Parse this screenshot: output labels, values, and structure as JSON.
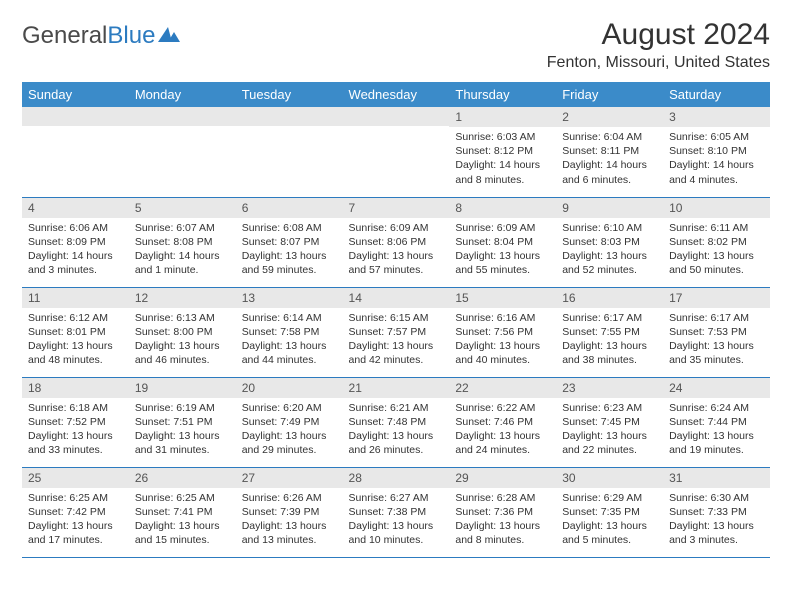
{
  "logo": {
    "part1": "General",
    "part2": "Blue"
  },
  "title": "August 2024",
  "location": "Fenton, Missouri, United States",
  "colors": {
    "header_bg": "#3b8bc9",
    "header_text": "#ffffff",
    "daynum_bg": "#e8e8e8",
    "border": "#2c7bc0",
    "text": "#333333"
  },
  "weekdays": [
    "Sunday",
    "Monday",
    "Tuesday",
    "Wednesday",
    "Thursday",
    "Friday",
    "Saturday"
  ],
  "weeks": [
    [
      {
        "empty": true
      },
      {
        "empty": true
      },
      {
        "empty": true
      },
      {
        "empty": true
      },
      {
        "num": "1",
        "sunrise": "Sunrise: 6:03 AM",
        "sunset": "Sunset: 8:12 PM",
        "daylight1": "Daylight: 14 hours",
        "daylight2": "and 8 minutes."
      },
      {
        "num": "2",
        "sunrise": "Sunrise: 6:04 AM",
        "sunset": "Sunset: 8:11 PM",
        "daylight1": "Daylight: 14 hours",
        "daylight2": "and 6 minutes."
      },
      {
        "num": "3",
        "sunrise": "Sunrise: 6:05 AM",
        "sunset": "Sunset: 8:10 PM",
        "daylight1": "Daylight: 14 hours",
        "daylight2": "and 4 minutes."
      }
    ],
    [
      {
        "num": "4",
        "sunrise": "Sunrise: 6:06 AM",
        "sunset": "Sunset: 8:09 PM",
        "daylight1": "Daylight: 14 hours",
        "daylight2": "and 3 minutes."
      },
      {
        "num": "5",
        "sunrise": "Sunrise: 6:07 AM",
        "sunset": "Sunset: 8:08 PM",
        "daylight1": "Daylight: 14 hours",
        "daylight2": "and 1 minute."
      },
      {
        "num": "6",
        "sunrise": "Sunrise: 6:08 AM",
        "sunset": "Sunset: 8:07 PM",
        "daylight1": "Daylight: 13 hours",
        "daylight2": "and 59 minutes."
      },
      {
        "num": "7",
        "sunrise": "Sunrise: 6:09 AM",
        "sunset": "Sunset: 8:06 PM",
        "daylight1": "Daylight: 13 hours",
        "daylight2": "and 57 minutes."
      },
      {
        "num": "8",
        "sunrise": "Sunrise: 6:09 AM",
        "sunset": "Sunset: 8:04 PM",
        "daylight1": "Daylight: 13 hours",
        "daylight2": "and 55 minutes."
      },
      {
        "num": "9",
        "sunrise": "Sunrise: 6:10 AM",
        "sunset": "Sunset: 8:03 PM",
        "daylight1": "Daylight: 13 hours",
        "daylight2": "and 52 minutes."
      },
      {
        "num": "10",
        "sunrise": "Sunrise: 6:11 AM",
        "sunset": "Sunset: 8:02 PM",
        "daylight1": "Daylight: 13 hours",
        "daylight2": "and 50 minutes."
      }
    ],
    [
      {
        "num": "11",
        "sunrise": "Sunrise: 6:12 AM",
        "sunset": "Sunset: 8:01 PM",
        "daylight1": "Daylight: 13 hours",
        "daylight2": "and 48 minutes."
      },
      {
        "num": "12",
        "sunrise": "Sunrise: 6:13 AM",
        "sunset": "Sunset: 8:00 PM",
        "daylight1": "Daylight: 13 hours",
        "daylight2": "and 46 minutes."
      },
      {
        "num": "13",
        "sunrise": "Sunrise: 6:14 AM",
        "sunset": "Sunset: 7:58 PM",
        "daylight1": "Daylight: 13 hours",
        "daylight2": "and 44 minutes."
      },
      {
        "num": "14",
        "sunrise": "Sunrise: 6:15 AM",
        "sunset": "Sunset: 7:57 PM",
        "daylight1": "Daylight: 13 hours",
        "daylight2": "and 42 minutes."
      },
      {
        "num": "15",
        "sunrise": "Sunrise: 6:16 AM",
        "sunset": "Sunset: 7:56 PM",
        "daylight1": "Daylight: 13 hours",
        "daylight2": "and 40 minutes."
      },
      {
        "num": "16",
        "sunrise": "Sunrise: 6:17 AM",
        "sunset": "Sunset: 7:55 PM",
        "daylight1": "Daylight: 13 hours",
        "daylight2": "and 38 minutes."
      },
      {
        "num": "17",
        "sunrise": "Sunrise: 6:17 AM",
        "sunset": "Sunset: 7:53 PM",
        "daylight1": "Daylight: 13 hours",
        "daylight2": "and 35 minutes."
      }
    ],
    [
      {
        "num": "18",
        "sunrise": "Sunrise: 6:18 AM",
        "sunset": "Sunset: 7:52 PM",
        "daylight1": "Daylight: 13 hours",
        "daylight2": "and 33 minutes."
      },
      {
        "num": "19",
        "sunrise": "Sunrise: 6:19 AM",
        "sunset": "Sunset: 7:51 PM",
        "daylight1": "Daylight: 13 hours",
        "daylight2": "and 31 minutes."
      },
      {
        "num": "20",
        "sunrise": "Sunrise: 6:20 AM",
        "sunset": "Sunset: 7:49 PM",
        "daylight1": "Daylight: 13 hours",
        "daylight2": "and 29 minutes."
      },
      {
        "num": "21",
        "sunrise": "Sunrise: 6:21 AM",
        "sunset": "Sunset: 7:48 PM",
        "daylight1": "Daylight: 13 hours",
        "daylight2": "and 26 minutes."
      },
      {
        "num": "22",
        "sunrise": "Sunrise: 6:22 AM",
        "sunset": "Sunset: 7:46 PM",
        "daylight1": "Daylight: 13 hours",
        "daylight2": "and 24 minutes."
      },
      {
        "num": "23",
        "sunrise": "Sunrise: 6:23 AM",
        "sunset": "Sunset: 7:45 PM",
        "daylight1": "Daylight: 13 hours",
        "daylight2": "and 22 minutes."
      },
      {
        "num": "24",
        "sunrise": "Sunrise: 6:24 AM",
        "sunset": "Sunset: 7:44 PM",
        "daylight1": "Daylight: 13 hours",
        "daylight2": "and 19 minutes."
      }
    ],
    [
      {
        "num": "25",
        "sunrise": "Sunrise: 6:25 AM",
        "sunset": "Sunset: 7:42 PM",
        "daylight1": "Daylight: 13 hours",
        "daylight2": "and 17 minutes."
      },
      {
        "num": "26",
        "sunrise": "Sunrise: 6:25 AM",
        "sunset": "Sunset: 7:41 PM",
        "daylight1": "Daylight: 13 hours",
        "daylight2": "and 15 minutes."
      },
      {
        "num": "27",
        "sunrise": "Sunrise: 6:26 AM",
        "sunset": "Sunset: 7:39 PM",
        "daylight1": "Daylight: 13 hours",
        "daylight2": "and 13 minutes."
      },
      {
        "num": "28",
        "sunrise": "Sunrise: 6:27 AM",
        "sunset": "Sunset: 7:38 PM",
        "daylight1": "Daylight: 13 hours",
        "daylight2": "and 10 minutes."
      },
      {
        "num": "29",
        "sunrise": "Sunrise: 6:28 AM",
        "sunset": "Sunset: 7:36 PM",
        "daylight1": "Daylight: 13 hours",
        "daylight2": "and 8 minutes."
      },
      {
        "num": "30",
        "sunrise": "Sunrise: 6:29 AM",
        "sunset": "Sunset: 7:35 PM",
        "daylight1": "Daylight: 13 hours",
        "daylight2": "and 5 minutes."
      },
      {
        "num": "31",
        "sunrise": "Sunrise: 6:30 AM",
        "sunset": "Sunset: 7:33 PM",
        "daylight1": "Daylight: 13 hours",
        "daylight2": "and 3 minutes."
      }
    ]
  ]
}
